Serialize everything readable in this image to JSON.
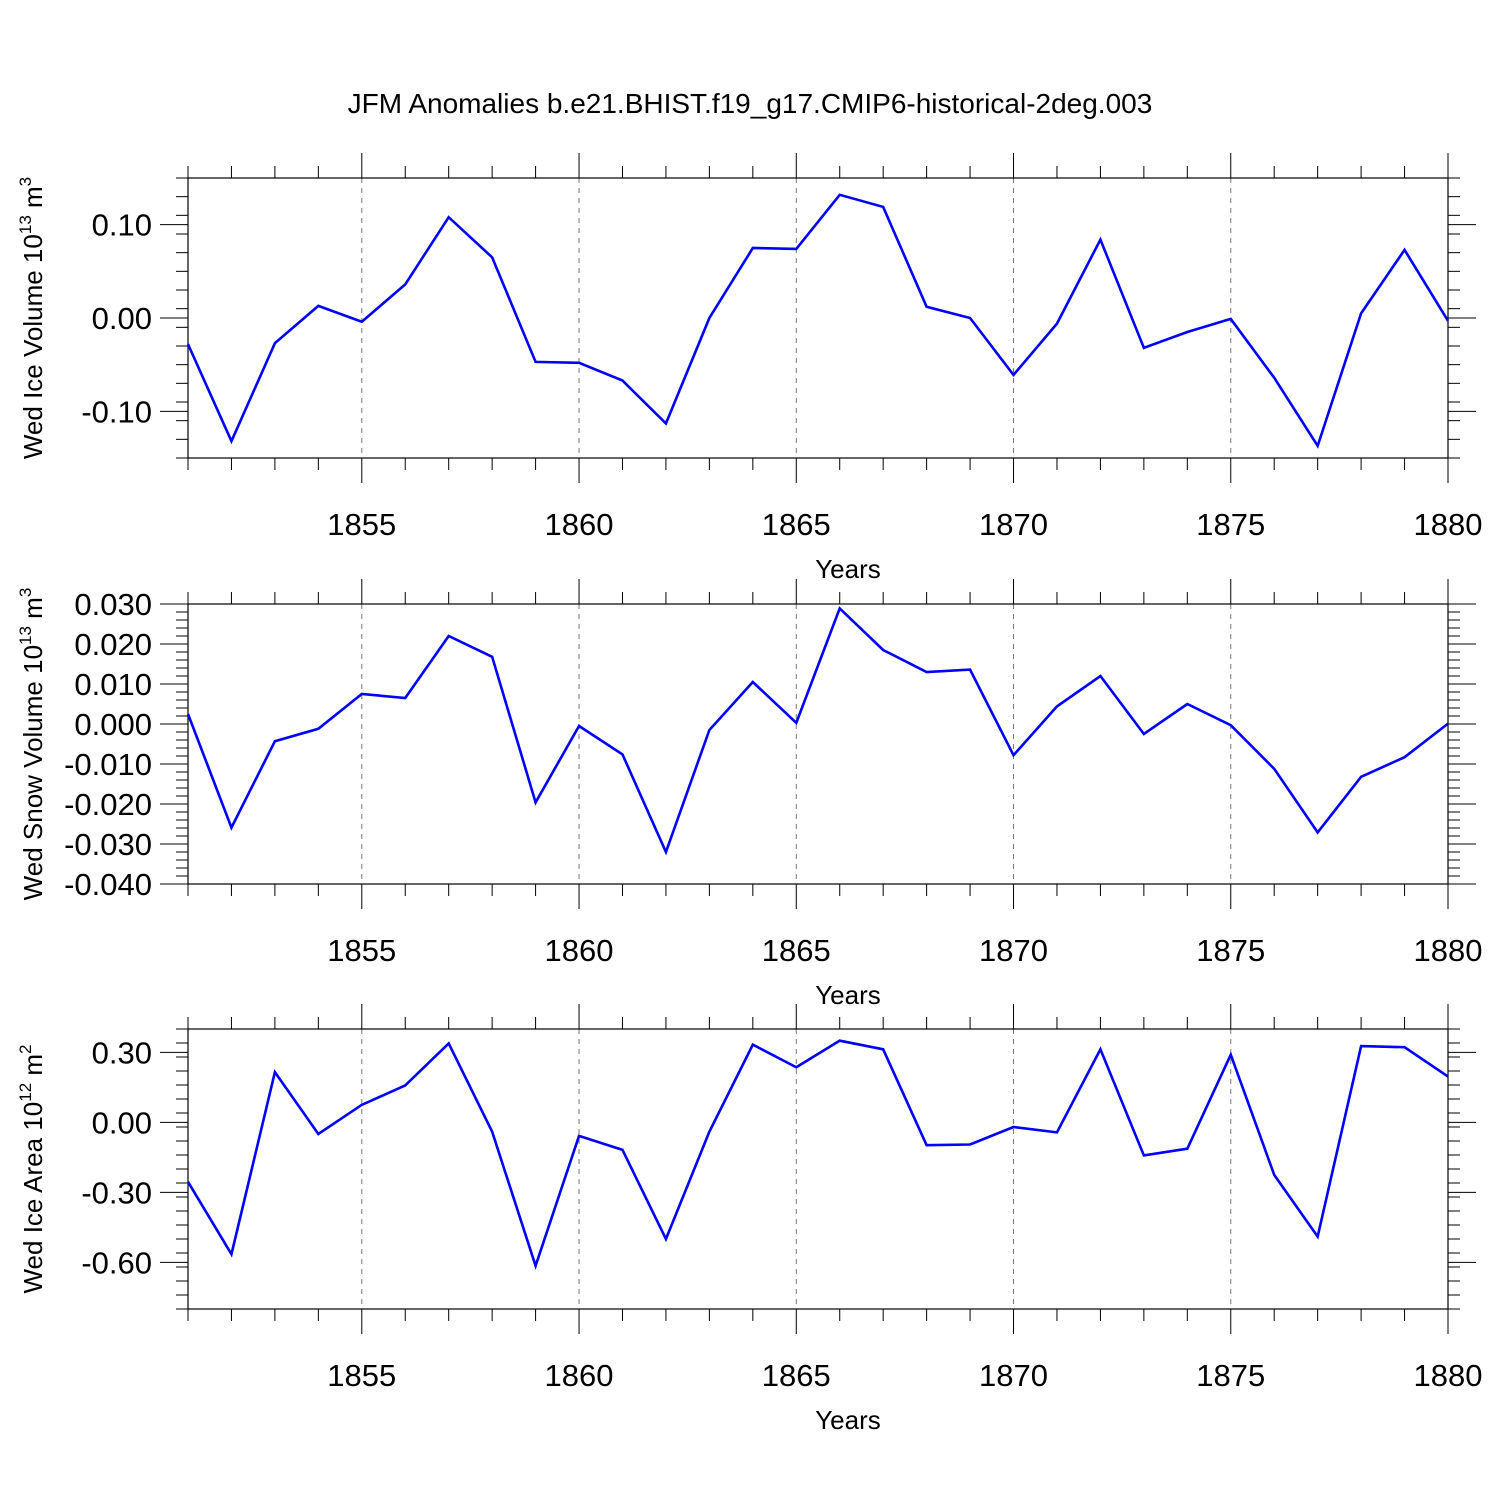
{
  "title": "JFM Anomalies b.e21.BHIST.f19_g17.CMIP6-historical-2deg.003",
  "chart_data": [
    {
      "type": "line",
      "ylabel_main": "Wed Ice Volume 10",
      "ylabel_exp": "13",
      "ylabel_unit": " m",
      "ylabel_unit_exp": "3",
      "xlabel": "Years",
      "xlim": [
        1851,
        1880
      ],
      "ylim": [
        -0.15,
        0.15
      ],
      "yticks": [
        -0.1,
        0.0,
        0.1
      ],
      "ytick_labels": [
        "-0.10",
        "0.00",
        "0.10"
      ],
      "yminor_step": 0.02,
      "xticks": [
        1855,
        1860,
        1865,
        1870,
        1875,
        1880
      ],
      "xtick_labels": [
        "1855",
        "1860",
        "1865",
        "1870",
        "1875",
        "1880"
      ],
      "line_color": "#0000ff",
      "x": [
        1851,
        1852,
        1853,
        1854,
        1855,
        1856,
        1857,
        1858,
        1859,
        1860,
        1861,
        1862,
        1863,
        1864,
        1865,
        1866,
        1867,
        1868,
        1869,
        1870,
        1871,
        1872,
        1873,
        1874,
        1875,
        1876,
        1877,
        1878,
        1879,
        1880
      ],
      "values": [
        -0.028,
        -0.132,
        -0.027,
        0.013,
        -0.004,
        0.036,
        0.108,
        0.065,
        -0.047,
        -0.048,
        -0.067,
        -0.113,
        0.0,
        0.075,
        0.074,
        0.132,
        0.119,
        0.012,
        0.0,
        -0.061,
        -0.006,
        0.084,
        -0.032,
        -0.015,
        -0.001,
        -0.064,
        -0.137,
        0.005,
        0.073,
        -0.003
      ]
    },
    {
      "type": "line",
      "ylabel_main": "Wed Snow Volume 10",
      "ylabel_exp": "13",
      "ylabel_unit": " m",
      "ylabel_unit_exp": "3",
      "xlabel": "Years",
      "xlim": [
        1851,
        1880
      ],
      "ylim": [
        -0.04,
        0.03
      ],
      "yticks": [
        -0.04,
        -0.03,
        -0.02,
        -0.01,
        0.0,
        0.01,
        0.02,
        0.03
      ],
      "ytick_labels": [
        "-0.040",
        "-0.030",
        "-0.020",
        "-0.010",
        "0.000",
        "0.010",
        "0.020",
        "0.030"
      ],
      "yminor_step": 0.002,
      "xticks": [
        1855,
        1860,
        1865,
        1870,
        1875,
        1880
      ],
      "xtick_labels": [
        "1855",
        "1860",
        "1865",
        "1870",
        "1875",
        "1880"
      ],
      "line_color": "#0000ff",
      "x": [
        1851,
        1852,
        1853,
        1854,
        1855,
        1856,
        1857,
        1858,
        1859,
        1860,
        1861,
        1862,
        1863,
        1864,
        1865,
        1866,
        1867,
        1868,
        1869,
        1870,
        1871,
        1872,
        1873,
        1874,
        1875,
        1876,
        1877,
        1878,
        1879,
        1880
      ],
      "values": [
        0.0025,
        -0.0259,
        -0.0043,
        -0.0012,
        0.0075,
        0.0065,
        0.022,
        0.0168,
        -0.0196,
        -0.0005,
        -0.0076,
        -0.032,
        -0.0015,
        0.0105,
        0.0003,
        0.0289,
        0.0185,
        0.013,
        0.0136,
        -0.0078,
        0.0044,
        0.012,
        -0.0025,
        0.005,
        -0.0003,
        -0.0112,
        -0.0271,
        -0.0132,
        -0.0083,
        0.0001
      ]
    },
    {
      "type": "line",
      "ylabel_main": "Wed Ice Area 10",
      "ylabel_exp": "12",
      "ylabel_unit": " m",
      "ylabel_unit_exp": "2",
      "xlabel": "Years",
      "xlim": [
        1851,
        1880
      ],
      "ylim": [
        -0.8,
        0.4
      ],
      "yticks": [
        -0.6,
        -0.3,
        0.0,
        0.3
      ],
      "ytick_labels": [
        "-0.60",
        "-0.30",
        "0.00",
        "0.30"
      ],
      "yminor_step": 0.06,
      "xticks": [
        1855,
        1860,
        1865,
        1870,
        1875,
        1880
      ],
      "xtick_labels": [
        "1855",
        "1860",
        "1865",
        "1870",
        "1875",
        "1880"
      ],
      "line_color": "#0000ff",
      "x": [
        1851,
        1852,
        1853,
        1854,
        1855,
        1856,
        1857,
        1858,
        1859,
        1860,
        1861,
        1862,
        1863,
        1864,
        1865,
        1866,
        1867,
        1868,
        1869,
        1870,
        1871,
        1872,
        1873,
        1874,
        1875,
        1876,
        1877,
        1878,
        1879,
        1880
      ],
      "values": [
        -0.255,
        -0.565,
        0.215,
        -0.05,
        0.075,
        0.158,
        0.338,
        -0.04,
        -0.615,
        -0.058,
        -0.118,
        -0.5,
        -0.04,
        0.333,
        0.236,
        0.35,
        0.313,
        -0.098,
        -0.095,
        -0.02,
        -0.043,
        0.313,
        -0.142,
        -0.113,
        0.29,
        -0.225,
        -0.49,
        0.327,
        0.322,
        0.196
      ]
    }
  ]
}
